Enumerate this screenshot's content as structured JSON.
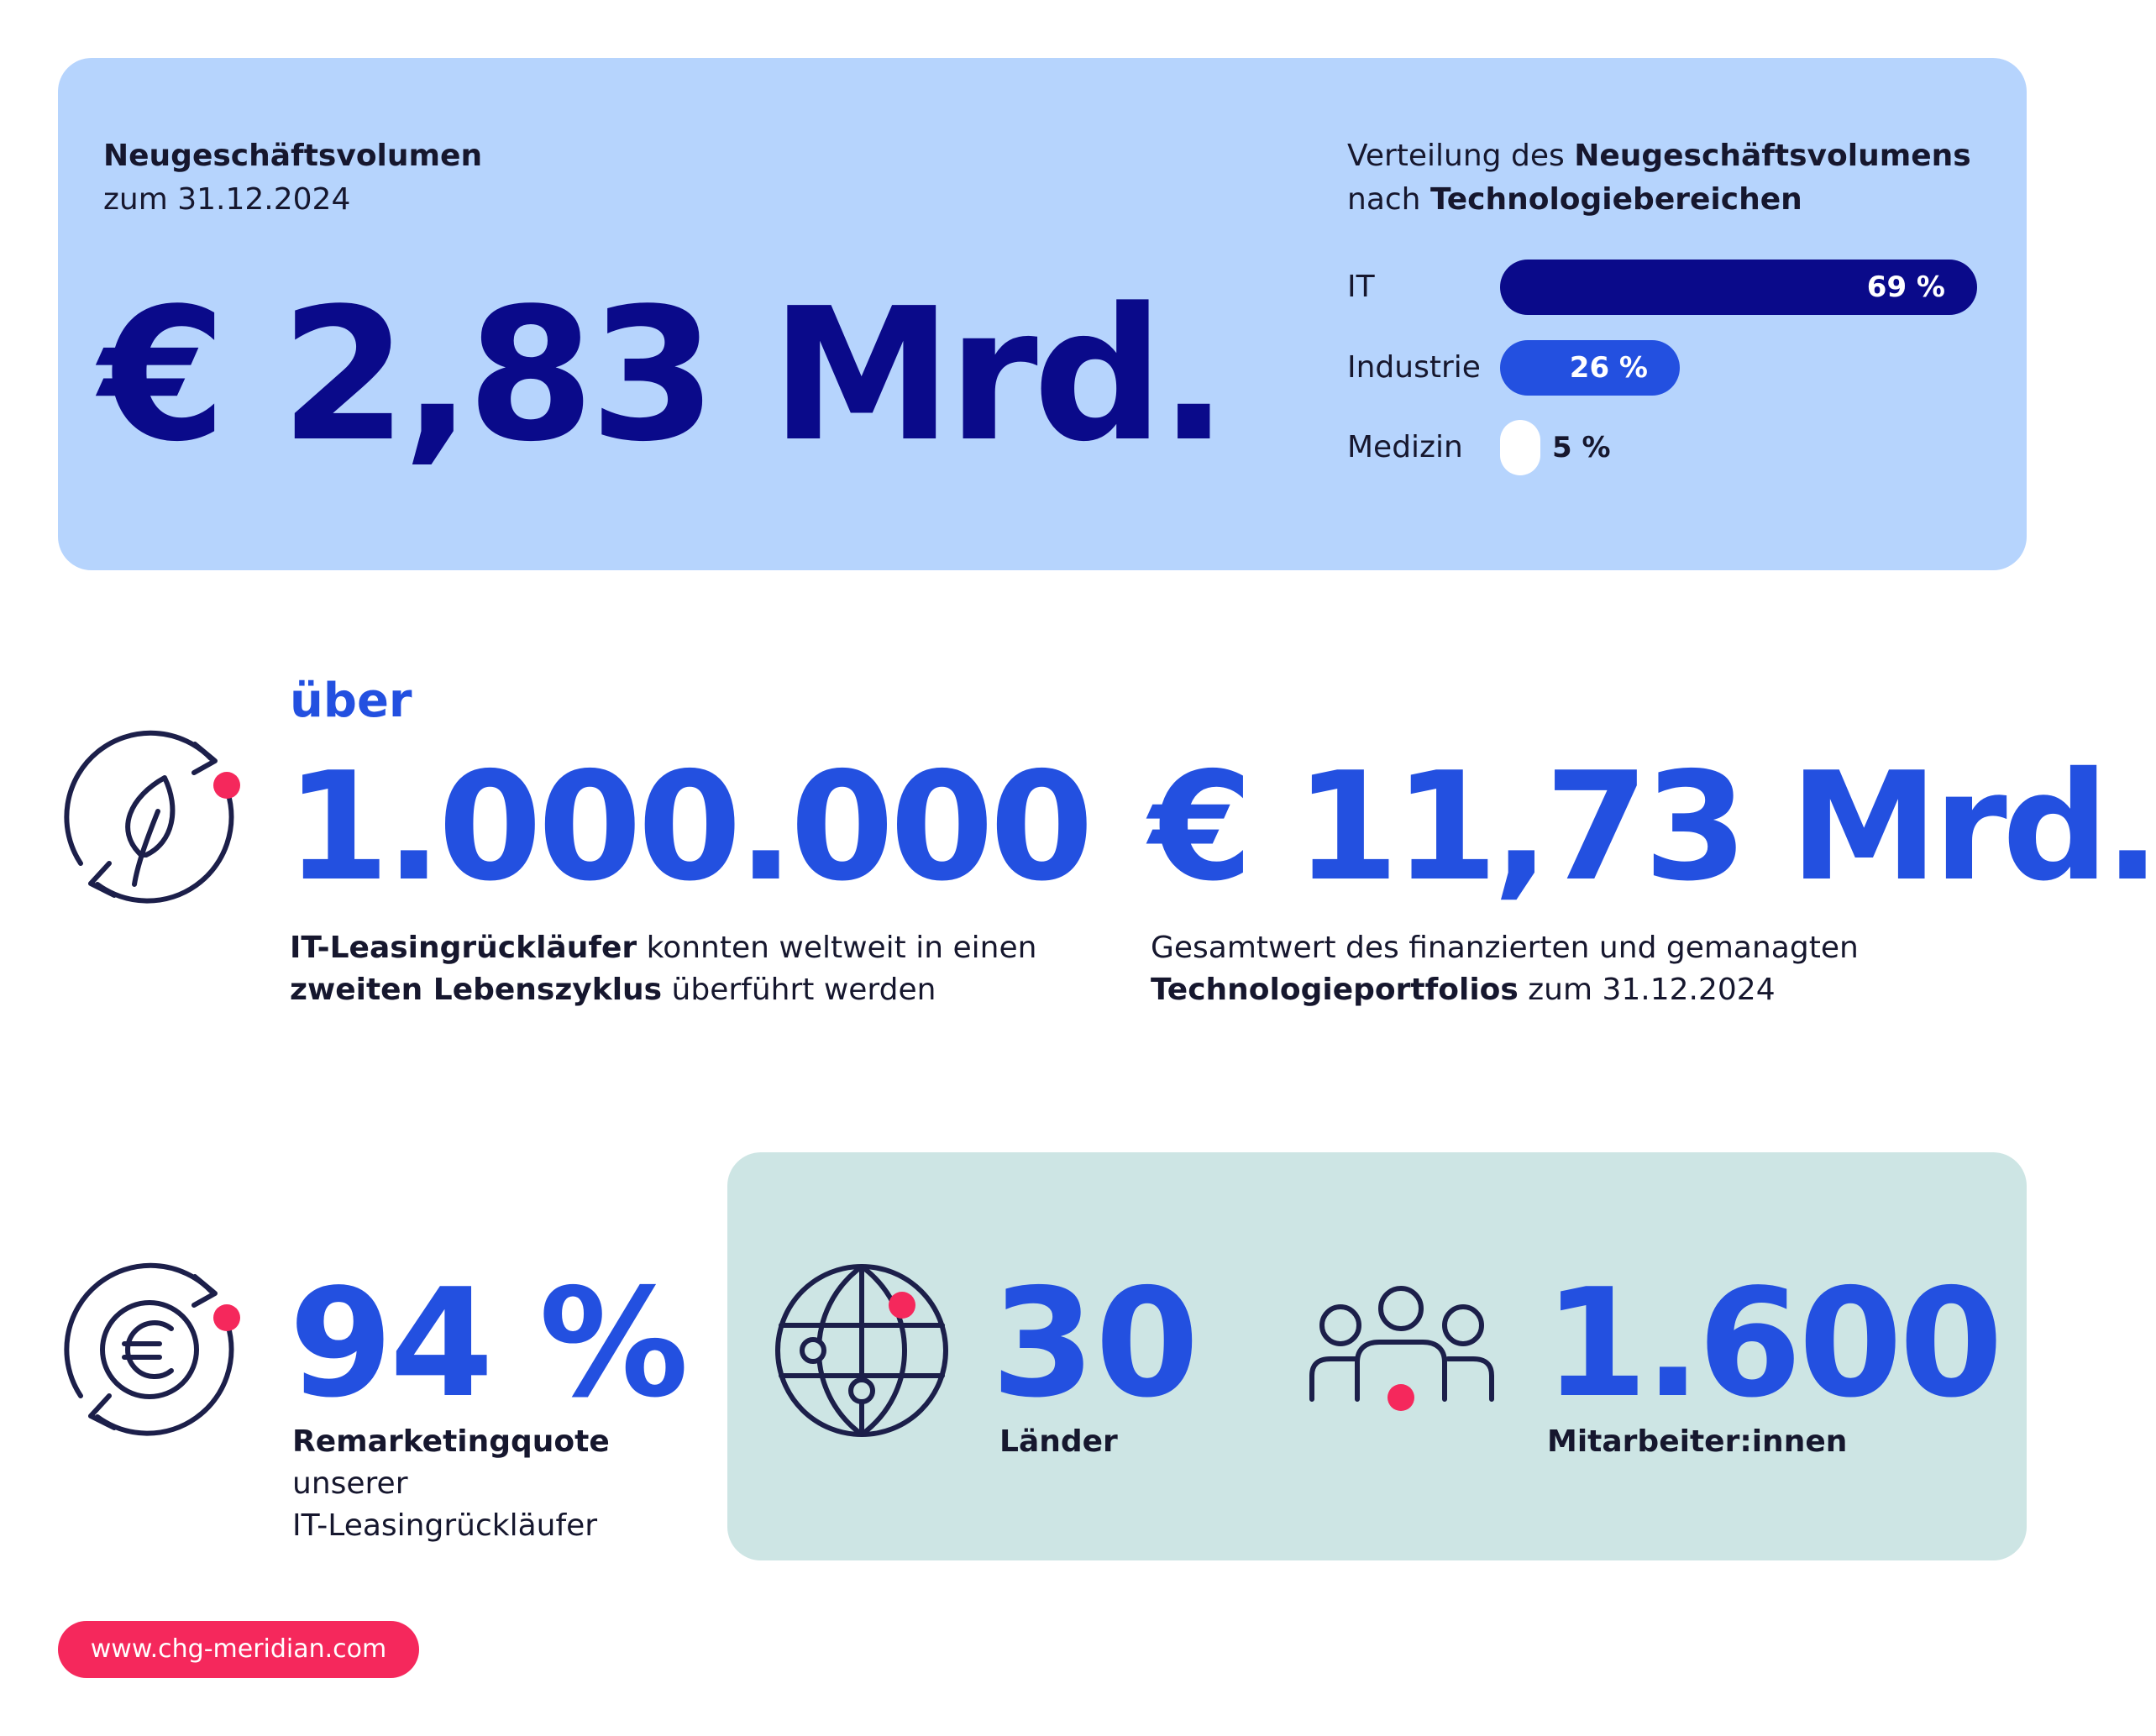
{
  "new_business": {
    "label": "Neugeschäftsvolumen",
    "date": "zum 31.12.2024",
    "amount": "€ 2,83 Mrd."
  },
  "distribution": {
    "title_prefix": "Verteilung des ",
    "title_bold_1": "Neugeschäftsvolumens",
    "title_mid": "nach ",
    "title_bold_2": "Technologiebereichen"
  },
  "chart_data": {
    "type": "bar",
    "categories": [
      "IT",
      "Industrie",
      "Medizin"
    ],
    "values": [
      69,
      26,
      5
    ],
    "value_labels": [
      "69 %",
      "26 %",
      "5 %"
    ],
    "unit": "%",
    "colors": [
      "#0a0a8a",
      "#2350e0",
      "#ffffff"
    ],
    "label_colors": [
      "#ffffff",
      "#ffffff",
      "#16172e"
    ],
    "orientation": "horizontal",
    "grid": false,
    "legend": "none"
  },
  "lifecycle": {
    "prefix": "über",
    "value": "1.000.000",
    "desc_bold_1": "IT-Leasingrückläufer",
    "desc_1": " konnten weltweit in einen",
    "desc_bold_2": "zweiten Lebenszyklus",
    "desc_2": " überführt werden",
    "icon": "leaf-cycle-icon"
  },
  "portfolio": {
    "value": "€ 11,73 Mrd.",
    "desc_1": "Gesamtwert des finanzierten und gemanagten",
    "desc_bold_2": "Technologieportfolios",
    "desc_2": " zum 31.12.2024"
  },
  "remarketing": {
    "value": "94 %",
    "label_bold": "Remarketingquote",
    "label_2": "unserer",
    "label_3": "IT-Leasingrückläufer",
    "icon": "euro-cycle-icon"
  },
  "countries": {
    "value": "30",
    "label": "Länder",
    "icon": "globe-icon"
  },
  "employees": {
    "value": "1.600",
    "label": "Mitarbeiter:innen",
    "icon": "people-icon"
  },
  "footer": {
    "url": "www.chg-meridian.com"
  },
  "colors": {
    "navy": "#0a0a8a",
    "blue": "#2350e0",
    "pink": "#f5285c",
    "panel_blue": "#b6d4fd",
    "panel_teal": "#cde5e4",
    "icon_dark": "#1c1f4a"
  }
}
